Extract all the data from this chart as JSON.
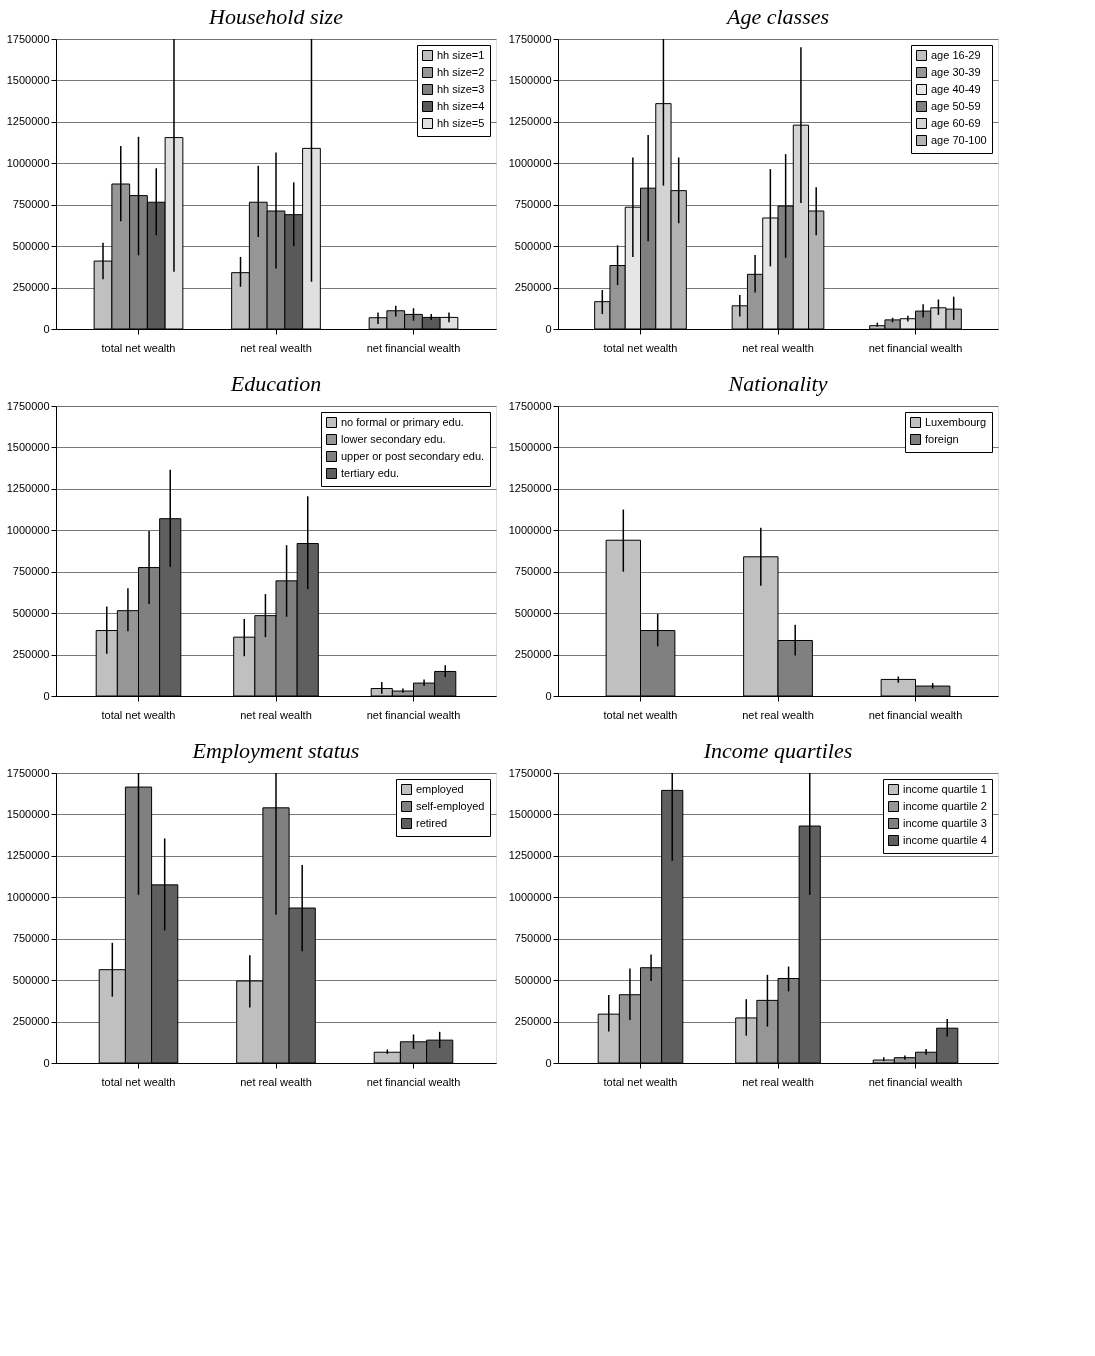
{
  "chart_data": [
    {
      "type": "bar",
      "title": "Household size",
      "categories": [
        "total net wealth",
        "net real wealth",
        "net financial wealth"
      ],
      "ylim": [
        0,
        1750000
      ],
      "yticks": [
        0,
        250000,
        500000,
        750000,
        1000000,
        1250000,
        1500000,
        1750000
      ],
      "grid": "y",
      "legend": "right",
      "series": [
        {
          "name": "hh size=1",
          "color": "#c0c0c0",
          "values": [
            410000,
            340000,
            68000
          ],
          "errors": [
            [
              300000,
              520000
            ],
            [
              255000,
              435000
            ],
            [
              30000,
              100000
            ]
          ]
        },
        {
          "name": "hh size=2",
          "color": "#969696",
          "values": [
            875000,
            765000,
            110000
          ],
          "errors": [
            [
              650000,
              1105000
            ],
            [
              555000,
              985000
            ],
            [
              75000,
              140000
            ]
          ]
        },
        {
          "name": "hh size=3",
          "color": "#808080",
          "values": [
            805000,
            712000,
            88000
          ],
          "errors": [
            [
              445000,
              1160000
            ],
            [
              365000,
              1065000
            ],
            [
              50000,
              125000
            ]
          ]
        },
        {
          "name": "hh size=4",
          "color": "#595959",
          "values": [
            765000,
            690000,
            70000
          ],
          "errors": [
            [
              565000,
              970000
            ],
            [
              500000,
              885000
            ],
            [
              55000,
              90000
            ]
          ]
        },
        {
          "name": "hh size=5",
          "color": "#e0e0e0",
          "values": [
            1155000,
            1090000,
            70000
          ],
          "errors": [
            [
              345000,
              1750000
            ],
            [
              285000,
              1750000
            ],
            [
              40000,
              100000
            ]
          ]
        }
      ]
    },
    {
      "type": "bar",
      "title": "Age classes",
      "categories": [
        "total net wealth",
        "net real wealth",
        "net financial wealth"
      ],
      "ylim": [
        0,
        1750000
      ],
      "yticks": [
        0,
        250000,
        500000,
        750000,
        1000000,
        1250000,
        1500000,
        1750000
      ],
      "grid": "y",
      "legend": "right",
      "series": [
        {
          "name": "age 16-29",
          "color": "#c0c0c0",
          "values": [
            165000,
            140000,
            20000
          ],
          "errors": [
            [
              90000,
              235000
            ],
            [
              75000,
              205000
            ],
            [
              14000,
              38000
            ]
          ]
        },
        {
          "name": "age 30-39",
          "color": "#969696",
          "values": [
            383000,
            330000,
            55000
          ],
          "errors": [
            [
              265000,
              505000
            ],
            [
              220000,
              447000
            ],
            [
              40000,
              68000
            ]
          ]
        },
        {
          "name": "age 40-49",
          "color": "#e6e6e6",
          "values": [
            735000,
            670000,
            62000
          ],
          "errors": [
            [
              435000,
              1035000
            ],
            [
              378000,
              965000
            ],
            [
              45000,
              80000
            ]
          ]
        },
        {
          "name": "age 50-59",
          "color": "#808080",
          "values": [
            850000,
            742000,
            108000
          ],
          "errors": [
            [
              530000,
              1170000
            ],
            [
              430000,
              1055000
            ],
            [
              70000,
              150000
            ]
          ]
        },
        {
          "name": "age 60-69",
          "color": "#d4d4d4",
          "values": [
            1360000,
            1230000,
            128000
          ],
          "errors": [
            [
              865000,
              1750000
            ],
            [
              760000,
              1700000
            ],
            [
              85000,
              178000
            ]
          ]
        },
        {
          "name": "age 70-100",
          "color": "#b3b3b3",
          "values": [
            835000,
            712000,
            120000
          ],
          "errors": [
            [
              638000,
              1035000
            ],
            [
              565000,
              855000
            ],
            [
              55000,
              195000
            ]
          ]
        }
      ]
    },
    {
      "type": "bar",
      "title": "Education",
      "categories": [
        "total net wealth",
        "net real wealth",
        "net financial wealth"
      ],
      "ylim": [
        0,
        1750000
      ],
      "yticks": [
        0,
        250000,
        500000,
        750000,
        1000000,
        1250000,
        1500000,
        1750000
      ],
      "grid": "y",
      "legend": "right",
      "series": [
        {
          "name": "no formal or primary edu.",
          "color": "#c0c0c0",
          "values": [
            395000,
            355000,
            45000
          ],
          "errors": [
            [
              255000,
              540000
            ],
            [
              240000,
              465000
            ],
            [
              13000,
              85000
            ]
          ]
        },
        {
          "name": "lower secondary edu.",
          "color": "#969696",
          "values": [
            515000,
            485000,
            30000
          ],
          "errors": [
            [
              390000,
              650000
            ],
            [
              355000,
              615000
            ],
            [
              20000,
              45000
            ]
          ]
        },
        {
          "name": "upper or post secondary edu.",
          "color": "#808080",
          "values": [
            775000,
            695000,
            78000
          ],
          "errors": [
            [
              555000,
              995000
            ],
            [
              478000,
              910000
            ],
            [
              60000,
              100000
            ]
          ]
        },
        {
          "name": "tertiary edu.",
          "color": "#5f5f5f",
          "values": [
            1070000,
            920000,
            148000
          ],
          "errors": [
            [
              780000,
              1365000
            ],
            [
              645000,
              1205000
            ],
            [
              115000,
              185000
            ]
          ]
        }
      ]
    },
    {
      "type": "bar",
      "title": "Nationality",
      "categories": [
        "total net wealth",
        "net real wealth",
        "net financial wealth"
      ],
      "ylim": [
        0,
        1750000
      ],
      "yticks": [
        0,
        250000,
        500000,
        750000,
        1000000,
        1250000,
        1500000,
        1750000
      ],
      "grid": "y",
      "legend": "right",
      "series": [
        {
          "name": "Luxembourg",
          "color": "#c0c0c0",
          "values": [
            940000,
            840000,
            100000
          ],
          "errors": [
            [
              750000,
              1125000
            ],
            [
              665000,
              1015000
            ],
            [
              80000,
              118000
            ]
          ]
        },
        {
          "name": "foreign",
          "color": "#808080",
          "values": [
            395000,
            335000,
            60000
          ],
          "errors": [
            [
              300000,
              495000
            ],
            [
              245000,
              430000
            ],
            [
              45000,
              78000
            ]
          ]
        }
      ]
    },
    {
      "type": "bar",
      "title": "Employment status",
      "categories": [
        "total net wealth",
        "net real wealth",
        "net financial wealth"
      ],
      "ylim": [
        0,
        1750000
      ],
      "yticks": [
        0,
        250000,
        500000,
        750000,
        1000000,
        1250000,
        1500000,
        1750000
      ],
      "grid": "y",
      "legend": "right",
      "series": [
        {
          "name": "employed",
          "color": "#c0c0c0",
          "values": [
            563000,
            495000,
            65000
          ],
          "errors": [
            [
              400000,
              725000
            ],
            [
              335000,
              650000
            ],
            [
              55000,
              82000
            ]
          ]
        },
        {
          "name": "self-employed",
          "color": "#808080",
          "values": [
            1665000,
            1540000,
            128000
          ],
          "errors": [
            [
              1015000,
              1750000
            ],
            [
              895000,
              1750000
            ],
            [
              85000,
              172000
            ]
          ]
        },
        {
          "name": "retired",
          "color": "#5f5f5f",
          "values": [
            1075000,
            935000,
            138000
          ],
          "errors": [
            [
              800000,
              1355000
            ],
            [
              675000,
              1195000
            ],
            [
              90000,
              188000
            ]
          ]
        }
      ]
    },
    {
      "type": "bar",
      "title": "Income quartiles",
      "categories": [
        "total net wealth",
        "net real wealth",
        "net financial wealth"
      ],
      "ylim": [
        0,
        1750000
      ],
      "yticks": [
        0,
        250000,
        500000,
        750000,
        1000000,
        1250000,
        1500000,
        1750000
      ],
      "grid": "y",
      "legend": "right",
      "series": [
        {
          "name": "income quartile 1",
          "color": "#c0c0c0",
          "values": [
            295000,
            272000,
            18000
          ],
          "errors": [
            [
              190000,
              410000
            ],
            [
              165000,
              385000
            ],
            [
              10000,
              35000
            ]
          ]
        },
        {
          "name": "income quartile 2",
          "color": "#969696",
          "values": [
            412000,
            378000,
            32000
          ],
          "errors": [
            [
              260000,
              570000
            ],
            [
              220000,
              532000
            ],
            [
              20000,
              45000
            ]
          ]
        },
        {
          "name": "income quartile 3",
          "color": "#808080",
          "values": [
            575000,
            510000,
            65000
          ],
          "errors": [
            [
              495000,
              655000
            ],
            [
              432000,
              582000
            ],
            [
              50000,
              85000
            ]
          ]
        },
        {
          "name": "income quartile 4",
          "color": "#5f5f5f",
          "values": [
            1645000,
            1430000,
            210000
          ],
          "errors": [
            [
              1220000,
              1750000
            ],
            [
              1015000,
              1750000
            ],
            [
              160000,
              265000
            ]
          ]
        }
      ]
    }
  ]
}
